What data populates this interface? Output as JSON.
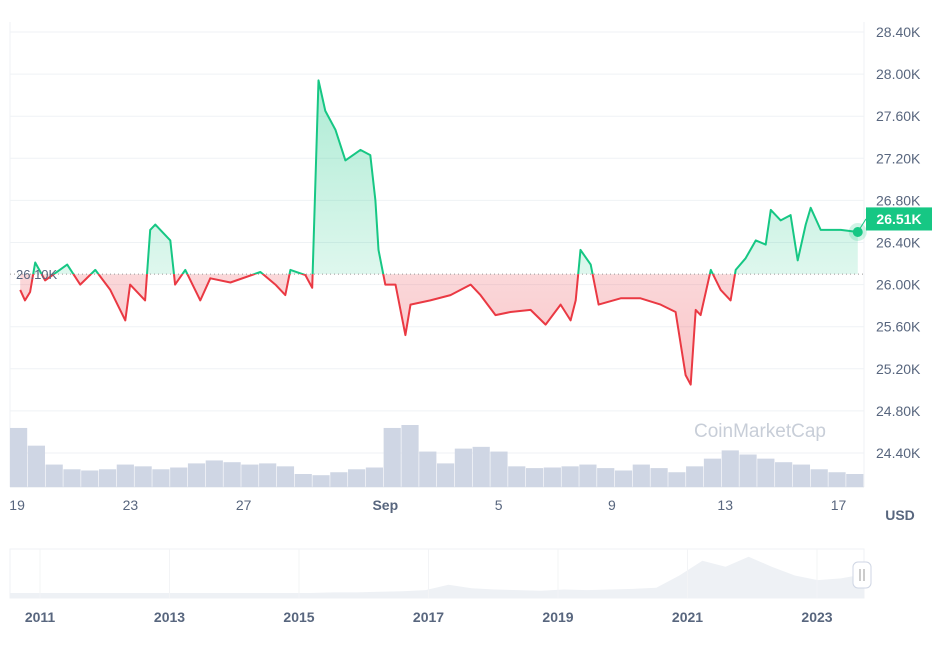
{
  "chart_data": {
    "type": "line",
    "currency_label": "USD",
    "baseline_value": 26.1,
    "baseline_label": "26.10K",
    "current_label": "26.51K",
    "y_ticks": [
      24.4,
      24.8,
      25.2,
      25.6,
      26.0,
      26.4,
      26.8,
      27.2,
      27.6,
      28.0,
      28.4
    ],
    "y_tick_labels": [
      "24.40K",
      "24.80K",
      "25.20K",
      "25.60K",
      "26.00K",
      "26.40K",
      "26.80K",
      "27.20K",
      "27.60K",
      "28.00K",
      "28.40K"
    ],
    "ylim": [
      24.4,
      28.4
    ],
    "x_unit": "days since Aug 19",
    "x_ticks": [
      0,
      4,
      8,
      13,
      17,
      21,
      25,
      29
    ],
    "x_tick_labels": [
      "19",
      "23",
      "27",
      "Sep",
      "5",
      "9",
      "13",
      "17"
    ],
    "xlim": [
      -0.25,
      29.9
    ],
    "colors": {
      "up": "#16c784",
      "down": "#ea3943",
      "volume": "#cfd6e4"
    },
    "watermark": "CoinMarketCap",
    "x": [
      0.11,
      0.28,
      0.46,
      0.64,
      0.99,
      1.77,
      2.23,
      2.76,
      3.29,
      3.82,
      3.99,
      4.52,
      4.7,
      4.88,
      5.41,
      5.58,
      5.94,
      6.47,
      6.82,
      7.53,
      8.59,
      9.12,
      9.47,
      9.65,
      10.18,
      10.42,
      10.64,
      10.88,
      11.24,
      11.59,
      12.12,
      12.47,
      12.65,
      12.76,
      13.0,
      13.36,
      13.71,
      13.89,
      14.59,
      15.3,
      16.01,
      16.36,
      16.89,
      17.42,
      18.13,
      18.66,
      19.19,
      19.54,
      19.72,
      19.89,
      20.25,
      20.53,
      21.31,
      22.01,
      22.72,
      23.25,
      23.6,
      23.78,
      23.96,
      24.13,
      24.49,
      24.84,
      25.19,
      25.37,
      25.72,
      26.08,
      26.43,
      26.61,
      26.96,
      27.31,
      27.56,
      27.84,
      28.02,
      28.37,
      29.08,
      29.68
    ],
    "price_k": [
      25.95,
      25.85,
      25.93,
      26.21,
      26.04,
      26.19,
      26.0,
      26.14,
      25.95,
      25.66,
      26.0,
      25.85,
      26.52,
      26.57,
      26.42,
      26.0,
      26.14,
      25.85,
      26.06,
      26.02,
      26.12,
      26.0,
      25.9,
      26.14,
      26.09,
      25.97,
      27.94,
      27.65,
      27.47,
      27.18,
      27.28,
      27.23,
      26.8,
      26.33,
      26.0,
      26.0,
      25.52,
      25.81,
      25.85,
      25.9,
      26.0,
      25.9,
      25.71,
      25.74,
      25.76,
      25.62,
      25.81,
      25.66,
      25.85,
      26.33,
      26.19,
      25.81,
      25.87,
      25.87,
      25.81,
      25.74,
      25.14,
      25.05,
      25.76,
      25.71,
      26.14,
      25.95,
      25.85,
      26.14,
      26.25,
      26.42,
      26.38,
      26.71,
      26.61,
      26.66,
      26.23,
      26.57,
      26.73,
      26.52,
      26.52,
      26.5
    ],
    "volume_relative": [
      100,
      70,
      38,
      30,
      28,
      30,
      38,
      35,
      30,
      33,
      40,
      45,
      42,
      38,
      40,
      35,
      22,
      20,
      25,
      30,
      33,
      100,
      105,
      60,
      40,
      65,
      68,
      60,
      35,
      32,
      33,
      35,
      38,
      32,
      28,
      38,
      32,
      25,
      35,
      48,
      62,
      55,
      48,
      42,
      38,
      30,
      25,
      22
    ],
    "navigator": {
      "year_labels": [
        "2011",
        "2013",
        "2015",
        "2017",
        "2019",
        "2021",
        "2023"
      ],
      "history": [
        0,
        0,
        0,
        0,
        0,
        0,
        0,
        0,
        0,
        0,
        0,
        0,
        0,
        0,
        1,
        1,
        2,
        3,
        5,
        14,
        8,
        6,
        5,
        4,
        6,
        5,
        6,
        7,
        9,
        30,
        55,
        45,
        62,
        45,
        30,
        22,
        25,
        32
      ]
    }
  }
}
